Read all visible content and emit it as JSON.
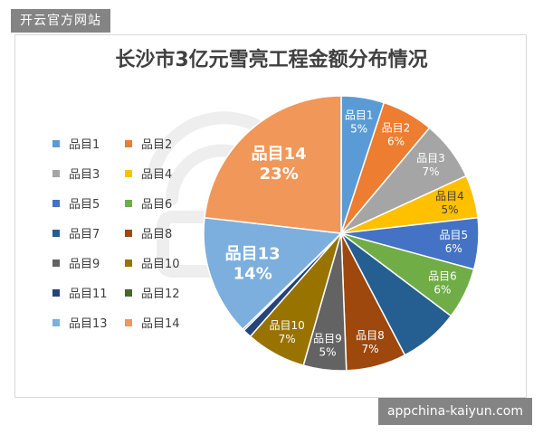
{
  "header": {
    "site_name": "开云官方网站"
  },
  "footer": {
    "watermark": "appchina-kaiyun.com"
  },
  "chart_data": {
    "type": "pie",
    "title": "长沙市3亿元雪亮工程金额分布情况",
    "legend_position": "left",
    "slices": [
      {
        "name": "品目1",
        "value": 5,
        "color": "#5b9bd5"
      },
      {
        "name": "品目2",
        "value": 6,
        "color": "#ed7d31"
      },
      {
        "name": "品目3",
        "value": 7,
        "color": "#a5a5a5"
      },
      {
        "name": "品目4",
        "value": 5,
        "color": "#ffc000"
      },
      {
        "name": "品目5",
        "value": 6,
        "color": "#4472c4"
      },
      {
        "name": "品目6",
        "value": 6,
        "color": "#70ad47"
      },
      {
        "name": "品目7",
        "value": 7,
        "color": "#255e91"
      },
      {
        "name": "品目8",
        "value": 7,
        "color": "#9e480e"
      },
      {
        "name": "品目9",
        "value": 5,
        "color": "#636363"
      },
      {
        "name": "品目10",
        "value": 7,
        "color": "#997300"
      },
      {
        "name": "品目11",
        "value": 1,
        "color": "#264478"
      },
      {
        "name": "品目12",
        "value": 0.2,
        "color": "#43682b"
      },
      {
        "name": "品目13",
        "value": 14,
        "color": "#7cafdd"
      },
      {
        "name": "品目14",
        "value": 23,
        "color": "#f1975a"
      }
    ],
    "data_labels": [
      {
        "slice": "品目1",
        "text": "5%"
      },
      {
        "slice": "品目2",
        "text": "6%"
      },
      {
        "slice": "品目3",
        "text": "7%"
      },
      {
        "slice": "品目4",
        "text": "5%"
      },
      {
        "slice": "品目5",
        "text": "6%"
      },
      {
        "slice": "品目6",
        "text": "6%"
      },
      {
        "slice": "品目7",
        "text": ""
      },
      {
        "slice": "品目8",
        "text": "7%"
      },
      {
        "slice": "品目9",
        "text": "5%"
      },
      {
        "slice": "品目10",
        "text": "7%"
      },
      {
        "slice": "品目11",
        "text": ""
      },
      {
        "slice": "品目12",
        "text": ""
      },
      {
        "slice": "品目13",
        "text": "14%"
      },
      {
        "slice": "品目14",
        "text": "23%"
      }
    ]
  }
}
